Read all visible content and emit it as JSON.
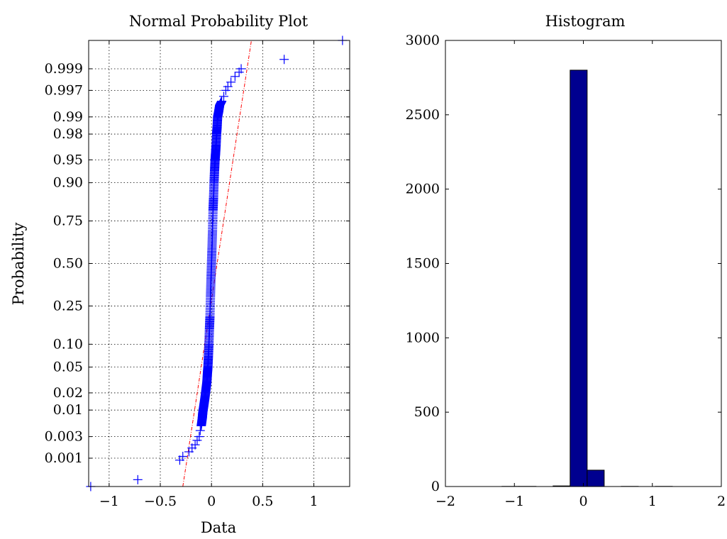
{
  "chart_data": [
    {
      "type": "scatter",
      "title": "Normal Probability Plot",
      "xlabel": "Data",
      "ylabel": "Probability",
      "xlim": [
        -1.2,
        1.35
      ],
      "x_ticks": [
        -1,
        -0.5,
        0,
        0.5,
        1
      ],
      "x_tick_labels": [
        "−1",
        "−0.5",
        "0",
        "0.5",
        "1"
      ],
      "y_scale": "normal-probability",
      "y_ticks": [
        0.001,
        0.003,
        0.01,
        0.02,
        0.05,
        0.1,
        0.25,
        0.5,
        0.75,
        0.9,
        0.95,
        0.98,
        0.99,
        0.997,
        0.999
      ],
      "y_tick_labels": [
        "0.001",
        "0.003",
        "0.01",
        "0.02",
        "0.05",
        "0.10",
        "0.25",
        "0.50",
        "0.75",
        "0.90",
        "0.95",
        "0.98",
        "0.99",
        "0.997",
        "0.999"
      ],
      "grid": true,
      "marker": "+",
      "marker_color": "#0000ff",
      "reference_line_color": "#ff0000",
      "reference_line": [
        [
          -0.28,
          0.0002
        ],
        [
          0.39,
          0.9998
        ]
      ],
      "points": [
        [
          -1.18,
          0.0002
        ],
        [
          -0.72,
          0.0003
        ],
        [
          -0.31,
          0.0009
        ],
        [
          -0.28,
          0.0011
        ],
        [
          -0.22,
          0.0014
        ],
        [
          -0.19,
          0.0017
        ],
        [
          -0.16,
          0.002
        ],
        [
          -0.14,
          0.0025
        ],
        [
          -0.12,
          0.003
        ],
        [
          -0.11,
          0.004
        ],
        [
          -0.1,
          0.005
        ],
        [
          -0.09,
          0.007
        ],
        [
          -0.085,
          0.009
        ],
        [
          -0.075,
          0.012
        ],
        [
          -0.065,
          0.016
        ],
        [
          -0.055,
          0.022
        ],
        [
          -0.045,
          0.03
        ],
        [
          -0.04,
          0.04
        ],
        [
          -0.035,
          0.05
        ],
        [
          -0.03,
          0.07
        ],
        [
          -0.025,
          0.1
        ],
        [
          -0.02,
          0.15
        ],
        [
          -0.015,
          0.2
        ],
        [
          -0.01,
          0.3
        ],
        [
          -0.005,
          0.4
        ],
        [
          0.0,
          0.5
        ],
        [
          0.005,
          0.6
        ],
        [
          0.01,
          0.7
        ],
        [
          0.015,
          0.8
        ],
        [
          0.02,
          0.85
        ],
        [
          0.025,
          0.9
        ],
        [
          0.03,
          0.93
        ],
        [
          0.035,
          0.95
        ],
        [
          0.04,
          0.96
        ],
        [
          0.045,
          0.97
        ],
        [
          0.05,
          0.98
        ],
        [
          0.055,
          0.985
        ],
        [
          0.06,
          0.99
        ],
        [
          0.07,
          0.992
        ],
        [
          0.08,
          0.994
        ],
        [
          0.1,
          0.995
        ],
        [
          0.12,
          0.996
        ],
        [
          0.14,
          0.997
        ],
        [
          0.16,
          0.9975
        ],
        [
          0.19,
          0.998
        ],
        [
          0.23,
          0.9985
        ],
        [
          0.27,
          0.9988
        ],
        [
          0.29,
          0.999
        ],
        [
          0.71,
          0.9994
        ],
        [
          1.28,
          0.9998
        ]
      ]
    },
    {
      "type": "bar",
      "title": "Histogram",
      "xlim": [
        -2,
        2
      ],
      "ylim": [
        0,
        3000
      ],
      "x_ticks": [
        -2,
        -1,
        0,
        1,
        2
      ],
      "x_tick_labels": [
        "−2",
        "−1",
        "0",
        "1",
        "2"
      ],
      "y_ticks": [
        0,
        500,
        1000,
        1500,
        2000,
        2500,
        3000
      ],
      "y_tick_labels": [
        "0",
        "500",
        "1000",
        "1500",
        "2000",
        "2500",
        "3000"
      ],
      "bar_color": "#00008f",
      "bins": [
        {
          "start": -1.18,
          "end": -0.933,
          "count": 1
        },
        {
          "start": -0.933,
          "end": -0.686,
          "count": 1
        },
        {
          "start": -0.686,
          "end": -0.439,
          "count": 0
        },
        {
          "start": -0.439,
          "end": -0.192,
          "count": 4
        },
        {
          "start": -0.192,
          "end": 0.055,
          "count": 2800
        },
        {
          "start": 0.055,
          "end": 0.302,
          "count": 110
        },
        {
          "start": 0.302,
          "end": 0.549,
          "count": 0
        },
        {
          "start": 0.549,
          "end": 0.796,
          "count": 1
        },
        {
          "start": 0.796,
          "end": 1.043,
          "count": 0
        },
        {
          "start": 1.043,
          "end": 1.29,
          "count": 1
        }
      ]
    }
  ]
}
